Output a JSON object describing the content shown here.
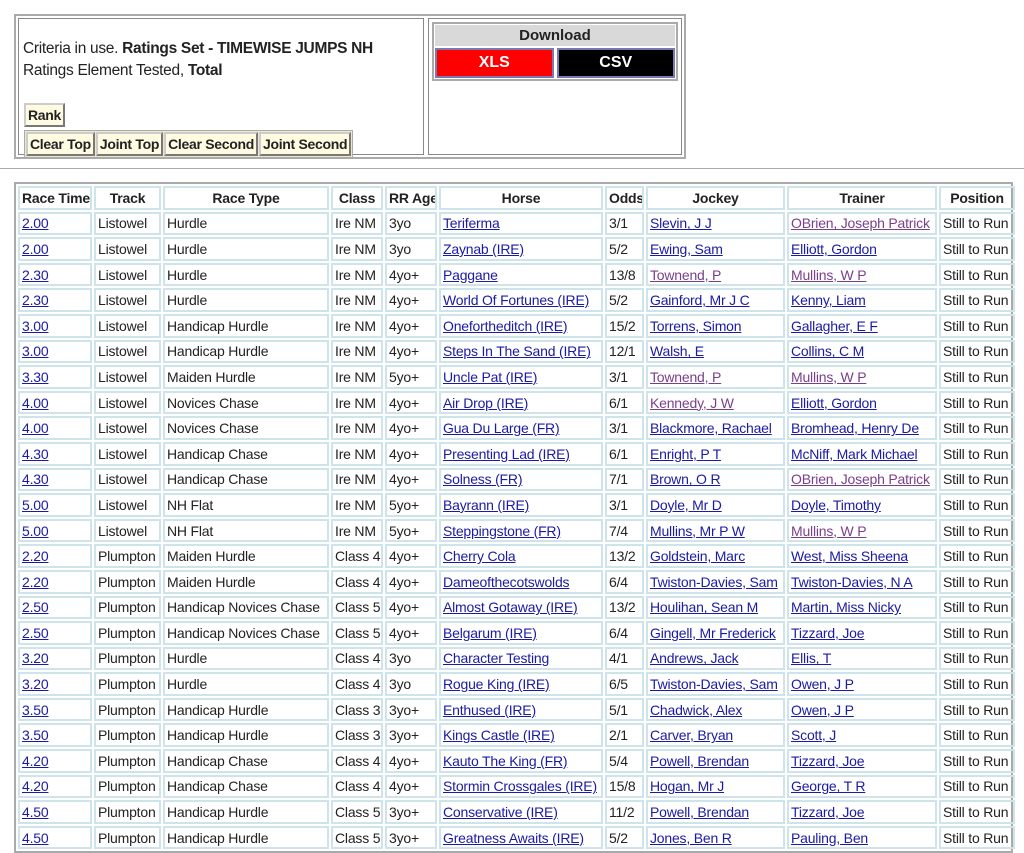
{
  "criteria": {
    "prefix": "Criteria in use.",
    "ratings_set": "Ratings Set - TIMEWISE JUMPS NH",
    "element_prefix": "Ratings Element Tested,",
    "element": "Total"
  },
  "buttons": {
    "rank": "Rank",
    "clear_top": "Clear Top",
    "joint_top": "Joint Top",
    "clear_second": "Clear Second",
    "joint_second": "Joint Second"
  },
  "download": {
    "title": "Download",
    "xls": "XLS",
    "csv": "CSV",
    "colors": {
      "xls": "#ff0000",
      "csv": "#000000"
    }
  },
  "table": {
    "headers": [
      "Race Time",
      "Track",
      "Race Type",
      "Class",
      "RR Age",
      "Horse",
      "Odds",
      "Jockey",
      "Trainer",
      "Position"
    ],
    "rows": [
      {
        "time": "2.00",
        "track": "Listowel",
        "type": "Hurdle",
        "class": "Ire NM",
        "age": "3yo",
        "horse": "Teriferma",
        "odds": "3/1",
        "jockey": "Slevin, J J",
        "trainer": "OBrien, Joseph Patrick",
        "trainer_visited": true,
        "position": "Still to Run"
      },
      {
        "time": "2.00",
        "track": "Listowel",
        "type": "Hurdle",
        "class": "Ire NM",
        "age": "3yo",
        "horse": "Zaynab (IRE)",
        "odds": "5/2",
        "jockey": "Ewing, Sam",
        "trainer": "Elliott, Gordon",
        "position": "Still to Run"
      },
      {
        "time": "2.30",
        "track": "Listowel",
        "type": "Hurdle",
        "class": "Ire NM",
        "age": "4yo+",
        "horse": "Paggane",
        "odds": "13/8",
        "jockey": "Townend, P",
        "jockey_visited": true,
        "trainer": "Mullins, W P",
        "trainer_visited": true,
        "position": "Still to Run"
      },
      {
        "time": "2.30",
        "track": "Listowel",
        "type": "Hurdle",
        "class": "Ire NM",
        "age": "4yo+",
        "horse": "World Of Fortunes (IRE)",
        "odds": "5/2",
        "jockey": "Gainford, Mr J C",
        "trainer": "Kenny, Liam",
        "position": "Still to Run"
      },
      {
        "time": "3.00",
        "track": "Listowel",
        "type": "Handicap Hurdle",
        "class": "Ire NM",
        "age": "4yo+",
        "horse": "Onefortheditch (IRE)",
        "odds": "15/2",
        "jockey": "Torrens, Simon",
        "trainer": "Gallagher, E F",
        "position": "Still to Run"
      },
      {
        "time": "3.00",
        "track": "Listowel",
        "type": "Handicap Hurdle",
        "class": "Ire NM",
        "age": "4yo+",
        "horse": "Steps In The Sand (IRE)",
        "odds": "12/1",
        "jockey": "Walsh, E",
        "trainer": "Collins, C M",
        "position": "Still to Run"
      },
      {
        "time": "3.30",
        "track": "Listowel",
        "type": "Maiden Hurdle",
        "class": "Ire NM",
        "age": "5yo+",
        "horse": "Uncle Pat (IRE)",
        "odds": "3/1",
        "jockey": "Townend, P",
        "jockey_visited": true,
        "trainer": "Mullins, W P",
        "trainer_visited": true,
        "position": "Still to Run"
      },
      {
        "time": "4.00",
        "track": "Listowel",
        "type": "Novices Chase",
        "class": "Ire NM",
        "age": "4yo+",
        "horse": "Air Drop (IRE)",
        "odds": "6/1",
        "jockey": "Kennedy, J W",
        "jockey_visited": true,
        "trainer": "Elliott, Gordon",
        "position": "Still to Run"
      },
      {
        "time": "4.00",
        "track": "Listowel",
        "type": "Novices Chase",
        "class": "Ire NM",
        "age": "4yo+",
        "horse": "Gua Du Large (FR)",
        "odds": "3/1",
        "jockey": "Blackmore, Rachael",
        "trainer": "Bromhead, Henry De",
        "position": "Still to Run"
      },
      {
        "time": "4.30",
        "track": "Listowel",
        "type": "Handicap Chase",
        "class": "Ire NM",
        "age": "4yo+",
        "horse": "Presenting Lad (IRE)",
        "odds": "6/1",
        "jockey": "Enright, P T",
        "trainer": "McNiff, Mark Michael",
        "position": "Still to Run"
      },
      {
        "time": "4.30",
        "track": "Listowel",
        "type": "Handicap Chase",
        "class": "Ire NM",
        "age": "4yo+",
        "horse": "Solness (FR)",
        "odds": "7/1",
        "jockey": "Brown, O R",
        "trainer": "OBrien, Joseph Patrick",
        "trainer_visited": true,
        "position": "Still to Run"
      },
      {
        "time": "5.00",
        "track": "Listowel",
        "type": "NH Flat",
        "class": "Ire NM",
        "age": "5yo+",
        "horse": "Bayrann (IRE)",
        "odds": "3/1",
        "jockey": "Doyle, Mr D",
        "trainer": "Doyle, Timothy",
        "position": "Still to Run"
      },
      {
        "time": "5.00",
        "track": "Listowel",
        "type": "NH Flat",
        "class": "Ire NM",
        "age": "5yo+",
        "horse": "Steppingstone (FR)",
        "odds": "7/4",
        "jockey": "Mullins, Mr P W",
        "trainer": "Mullins, W P",
        "trainer_visited": true,
        "position": "Still to Run"
      },
      {
        "time": "2.20",
        "track": "Plumpton",
        "type": "Maiden Hurdle",
        "class": "Class 4",
        "age": "4yo+",
        "horse": "Cherry Cola",
        "odds": "13/2",
        "jockey": "Goldstein, Marc",
        "trainer": "West, Miss Sheena",
        "position": "Still to Run"
      },
      {
        "time": "2.20",
        "track": "Plumpton",
        "type": "Maiden Hurdle",
        "class": "Class 4",
        "age": "4yo+",
        "horse": "Dameofthecotswolds",
        "odds": "6/4",
        "jockey": "Twiston-Davies, Sam",
        "trainer": "Twiston-Davies, N A",
        "position": "Still to Run"
      },
      {
        "time": "2.50",
        "track": "Plumpton",
        "type": "Handicap Novices Chase",
        "class": "Class 5",
        "age": "4yo+",
        "horse": "Almost Gotaway (IRE)",
        "odds": "13/2",
        "jockey": "Houlihan, Sean M",
        "trainer": "Martin, Miss Nicky",
        "position": "Still to Run"
      },
      {
        "time": "2.50",
        "track": "Plumpton",
        "type": "Handicap Novices Chase",
        "class": "Class 5",
        "age": "4yo+",
        "horse": "Belgarum (IRE)",
        "odds": "6/4",
        "jockey": "Gingell, Mr Frederick",
        "trainer": "Tizzard, Joe",
        "position": "Still to Run"
      },
      {
        "time": "3.20",
        "track": "Plumpton",
        "type": "Hurdle",
        "class": "Class 4",
        "age": "3yo",
        "horse": "Character Testing",
        "odds": "4/1",
        "jockey": "Andrews, Jack",
        "trainer": "Ellis, T",
        "position": "Still to Run"
      },
      {
        "time": "3.20",
        "track": "Plumpton",
        "type": "Hurdle",
        "class": "Class 4",
        "age": "3yo",
        "horse": "Rogue King (IRE)",
        "odds": "6/5",
        "jockey": "Twiston-Davies, Sam",
        "trainer": "Owen, J P",
        "position": "Still to Run"
      },
      {
        "time": "3.50",
        "track": "Plumpton",
        "type": "Handicap Hurdle",
        "class": "Class 3",
        "age": "3yo+",
        "horse": "Enthused (IRE)",
        "odds": "5/1",
        "jockey": "Chadwick, Alex",
        "trainer": "Owen, J P",
        "position": "Still to Run"
      },
      {
        "time": "3.50",
        "track": "Plumpton",
        "type": "Handicap Hurdle",
        "class": "Class 3",
        "age": "3yo+",
        "horse": "Kings Castle (IRE)",
        "odds": "2/1",
        "jockey": "Carver, Bryan",
        "trainer": "Scott, J",
        "position": "Still to Run"
      },
      {
        "time": "4.20",
        "track": "Plumpton",
        "type": "Handicap Chase",
        "class": "Class 4",
        "age": "4yo+",
        "horse": "Kauto The King (FR)",
        "odds": "5/4",
        "jockey": "Powell, Brendan",
        "trainer": "Tizzard, Joe",
        "position": "Still to Run"
      },
      {
        "time": "4.20",
        "track": "Plumpton",
        "type": "Handicap Chase",
        "class": "Class 4",
        "age": "4yo+",
        "horse": "Stormin Crossgales (IRE)",
        "odds": "15/8",
        "jockey": "Hogan, Mr J",
        "trainer": "George, T R",
        "position": "Still to Run"
      },
      {
        "time": "4.50",
        "track": "Plumpton",
        "type": "Handicap Hurdle",
        "class": "Class 5",
        "age": "3yo+",
        "horse": "Conservative (IRE)",
        "odds": "11/2",
        "jockey": "Powell, Brendan",
        "trainer": "Tizzard, Joe",
        "position": "Still to Run"
      },
      {
        "time": "4.50",
        "track": "Plumpton",
        "type": "Handicap Hurdle",
        "class": "Class 5",
        "age": "3yo+",
        "horse": "Greatness Awaits (IRE)",
        "odds": "5/2",
        "jockey": "Jones, Ben R",
        "trainer": "Pauling, Ben",
        "position": "Still to Run"
      }
    ]
  }
}
